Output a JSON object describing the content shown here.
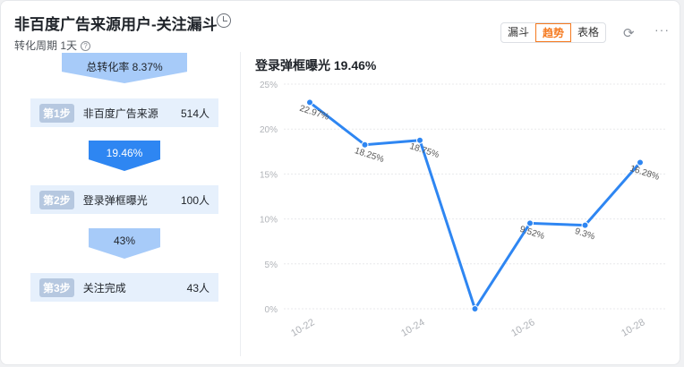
{
  "header": {
    "title": "非百度广告来源用户-关注漏斗",
    "period": "转化周期 1天",
    "help": "?"
  },
  "toolbar": {
    "views": [
      "漏斗",
      "趋势",
      "表格"
    ],
    "active": "趋势",
    "refresh": "⟳",
    "more": "···"
  },
  "funnel": {
    "total": "总转化率 8.37%",
    "steps": [
      {
        "badge": "第1步",
        "name": "非百度广告来源",
        "count": "514人"
      },
      {
        "badge": "第2步",
        "name": "登录弹框曝光",
        "count": "100人"
      },
      {
        "badge": "第3步",
        "name": "关注完成",
        "count": "43人"
      }
    ],
    "rates": [
      "19.46%",
      "43%"
    ]
  },
  "chart_data": {
    "type": "line",
    "title": "登录弹框曝光 19.46%",
    "x": [
      "10-22",
      "10-23",
      "10-24",
      "10-25",
      "10-26",
      "10-27",
      "10-28"
    ],
    "tick_labels": [
      "10-22",
      "10-24",
      "10-26",
      "10-28"
    ],
    "values": [
      22.97,
      18.25,
      18.75,
      0,
      9.52,
      9.3,
      16.28
    ],
    "data_labels": [
      "22.97%",
      "18.25%",
      "18.75%",
      "",
      "9.52%",
      "9.3%",
      "16.28%"
    ],
    "yticks": [
      "0%",
      "5%",
      "10%",
      "15%",
      "20%",
      "25%"
    ],
    "ylim": [
      0,
      25
    ],
    "grid": true,
    "color": "#2e86f2"
  }
}
